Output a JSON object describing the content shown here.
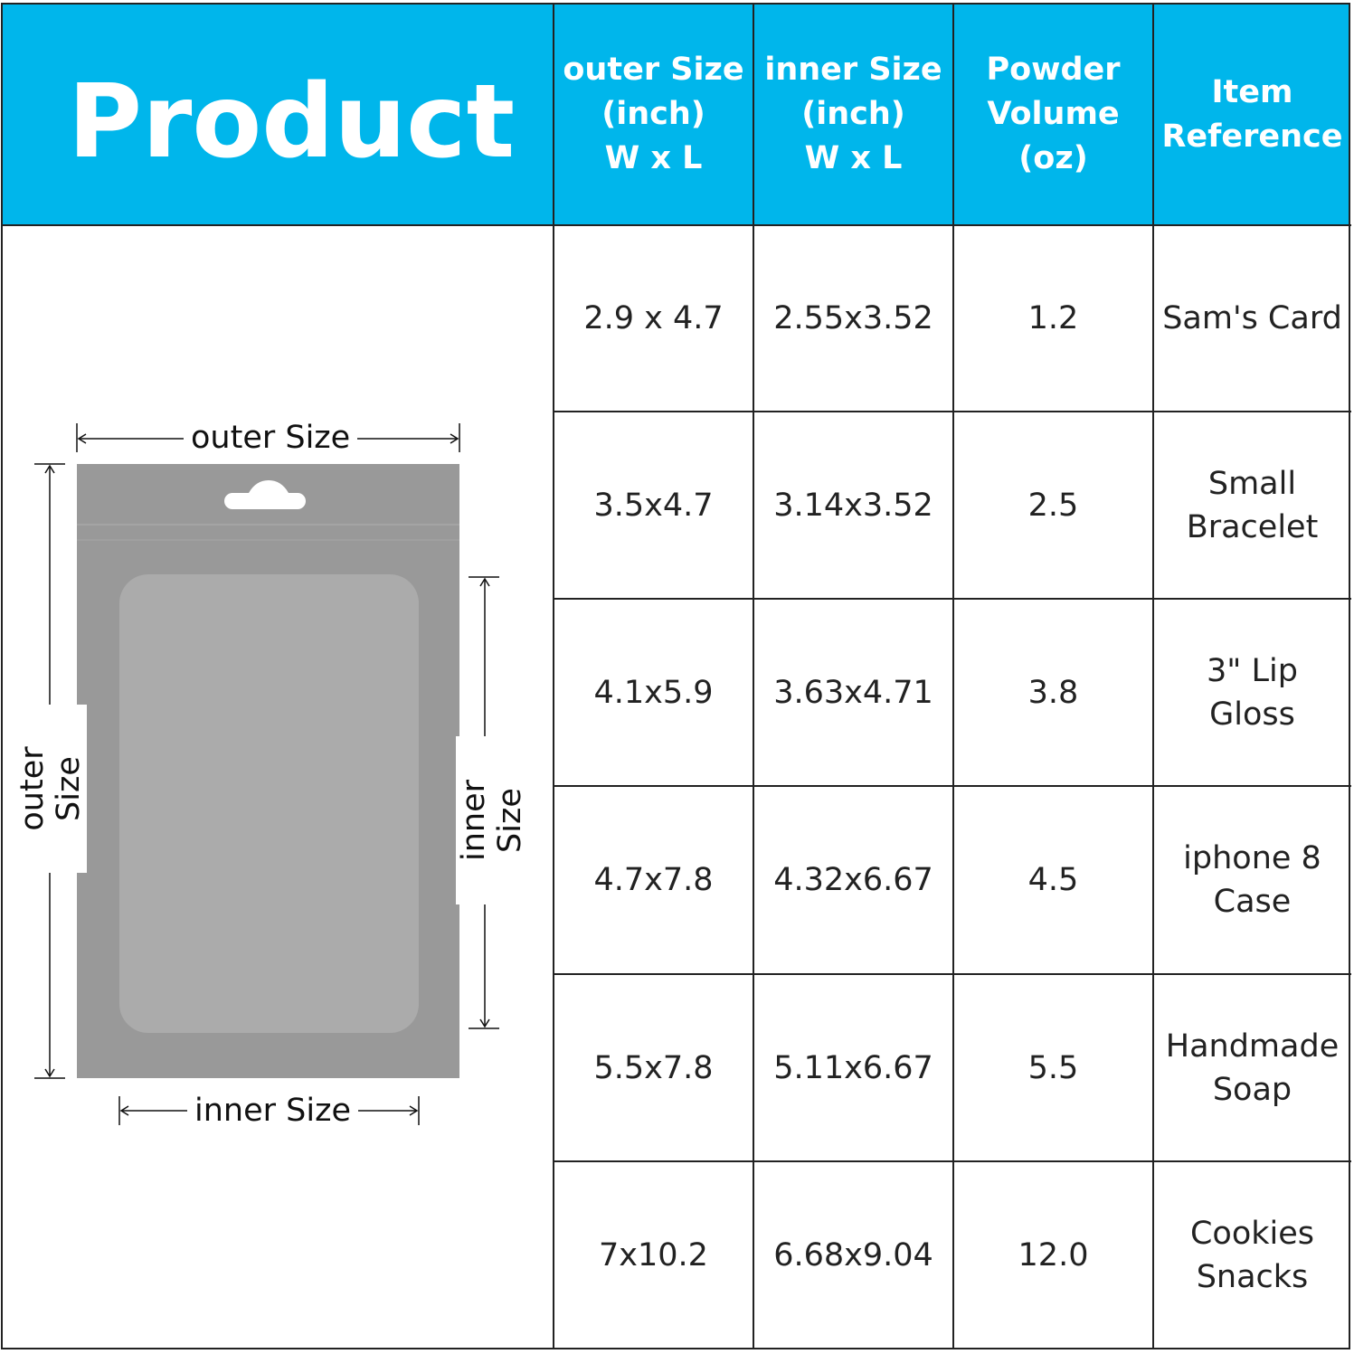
{
  "header": {
    "title": "Product",
    "columns": [
      "outer Size\n(inch)\nW x L",
      "inner Size\n(inch)\nW x L",
      "Powder\nVolume\n(oz)",
      "Item\nReference"
    ]
  },
  "rows": [
    [
      "2.9 x 4.7",
      "2.55x3.52",
      "1.2",
      "Sam's Card"
    ],
    [
      "3.5x4.7",
      "3.14x3.52",
      "2.5",
      "Small\nBracelet"
    ],
    [
      "4.1x5.9",
      "3.63x4.71",
      "3.8",
      "3\" Lip\nGloss"
    ],
    [
      "4.7x7.8",
      "4.32x6.67",
      "4.5",
      "iphone 8\nCase"
    ],
    [
      "5.5x7.8",
      "5.11x6.67",
      "5.5",
      "Handmade\nSoap"
    ],
    [
      "7x10.2",
      "6.68x9.04",
      "12.0",
      "Cookies\nSnacks"
    ]
  ],
  "diagram": {
    "outer_label": "outer Size",
    "inner_label": "inner Size"
  },
  "colors": {
    "header": "#00b6eb",
    "bag": "#999999",
    "window": "#aaaaaa"
  }
}
